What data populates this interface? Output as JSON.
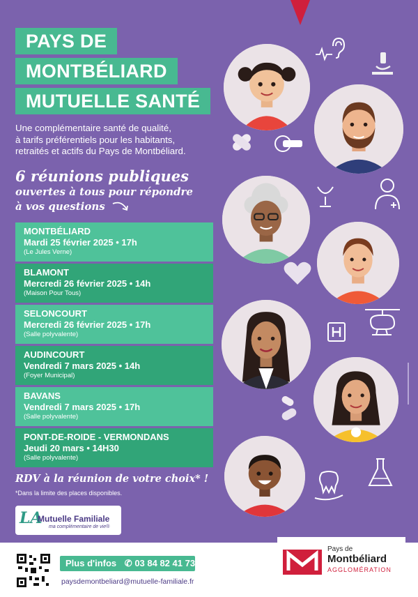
{
  "title_lines": [
    "PAYS DE",
    "MONTBÉLIARD",
    "MUTUELLE SANTÉ"
  ],
  "intro_lines": [
    "Une complémentaire santé de qualité,",
    "à tarifs préférentiels pour les habitants,",
    "retraités et actifs du Pays de Montbéliard."
  ],
  "headline": {
    "line1": "6 réunions publiques",
    "line2": "ouvertes à tous pour répondre",
    "line3": "à vos questions"
  },
  "meetings": [
    {
      "city": "MONTBÉLIARD",
      "when": "Mardi 25 février 2025 • 17h",
      "where": "(Le Jules Verne)"
    },
    {
      "city": "BLAMONT",
      "when": "Mercredi 26 février 2025 • 14h",
      "where": "(Maison Pour Tous)"
    },
    {
      "city": "SELONCOURT",
      "when": "Mercredi 26 février 2025 • 17h",
      "where": "(Salle polyvalente)"
    },
    {
      "city": "AUDINCOURT",
      "when": "Vendredi 7 mars 2025 • 14h",
      "where": "(Foyer Municipal)"
    },
    {
      "city": "BAVANS",
      "when": "Vendredi 7 mars 2025 • 17h",
      "where": "(Salle polyvalente)"
    },
    {
      "city": "PONT-DE-ROIDE - VERMONDANS",
      "when": "Jeudi 20 mars • 14H30",
      "where": "(Salle polyvalente)"
    }
  ],
  "rdv_text": "RDV à la réunion de votre choix* !",
  "footnote": "*Dans la limite des places disponibles.",
  "mutuelle_logo": {
    "name": "Mutuelle Familiale",
    "tagline": "ma complémentaire de vie®"
  },
  "contact": {
    "label": "Plus d'infos",
    "phone": "03 84 82 41 73",
    "email": "paysdemontbeliard@mutuelle-familiale.fr"
  },
  "agglo_logo": {
    "line1": "Pays de",
    "line2": "Montbéliard",
    "line3": "AGGLOMÉRATION"
  },
  "colors": {
    "background": "#7b62ad",
    "green": "#48b991",
    "green_dark": "#31a578",
    "red": "#d01f3c",
    "navy": "#4b3a85"
  },
  "icons": [
    "stethoscope-icon",
    "ear-icon",
    "microscope-icon",
    "bandage-icon",
    "scanner-icon",
    "pharmacy-cup-icon",
    "doctor-icon",
    "heart-icon",
    "hospital-icon",
    "helicopter-icon",
    "pill-icon",
    "tooth-icon",
    "flask-icon",
    "qr-code-icon",
    "phone-icon"
  ]
}
